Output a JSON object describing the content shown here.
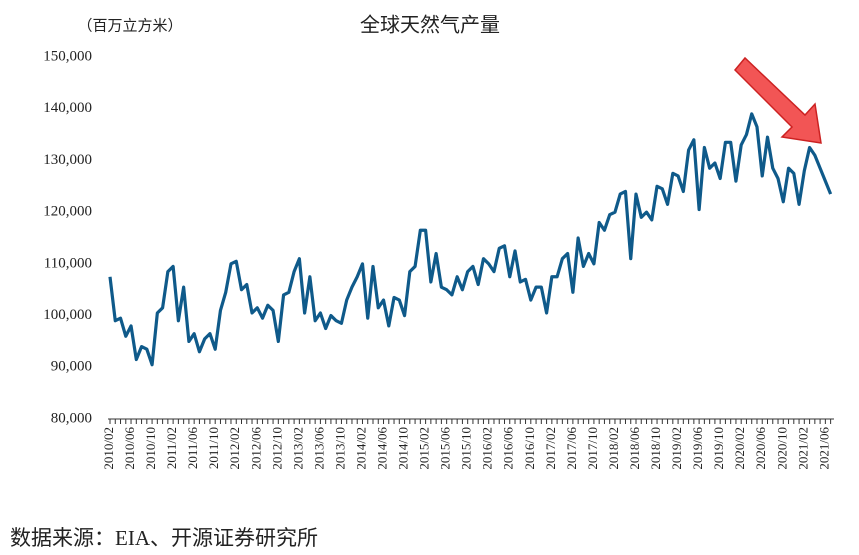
{
  "chart_data": {
    "type": "line",
    "title": "全球天然气产量",
    "unit_label": "（百万立方米）",
    "source": "数据来源：EIA、开源证券研究所",
    "categories": [
      "2010/02",
      null,
      null,
      null,
      "2010/06",
      null,
      null,
      null,
      "2010/10",
      null,
      null,
      null,
      "2011/02",
      null,
      null,
      null,
      "2011/06",
      null,
      null,
      null,
      "2011/10",
      null,
      null,
      null,
      "2012/02",
      null,
      null,
      null,
      "2012/06",
      null,
      null,
      null,
      "2012/10",
      null,
      null,
      null,
      "2013/02",
      null,
      null,
      null,
      "2013/06",
      null,
      null,
      null,
      "2013/10",
      null,
      null,
      null,
      "2014/02",
      null,
      null,
      null,
      "2014/06",
      null,
      null,
      null,
      "2014/10",
      null,
      null,
      null,
      "2015/02",
      null,
      null,
      null,
      "2015/06",
      null,
      null,
      null,
      "2015/10",
      null,
      null,
      null,
      "2016/02",
      null,
      null,
      null,
      "2016/06",
      null,
      null,
      null,
      "2016/10",
      null,
      null,
      null,
      "2017/02",
      null,
      null,
      null,
      "2017/06",
      null,
      null,
      null,
      "2017/10",
      null,
      null,
      null,
      "2018/02",
      null,
      null,
      null,
      "2018/06",
      null,
      null,
      null,
      "2018/10",
      null,
      null,
      null,
      "2019/02",
      null,
      null,
      null,
      "2019/06",
      null,
      null,
      null,
      "2019/10",
      null,
      null,
      null,
      "2020/02",
      null,
      null,
      null,
      "2020/06",
      null,
      null,
      null,
      "2020/10",
      null,
      null,
      null,
      "2021/02",
      null,
      null,
      null,
      "2021/06",
      null
    ],
    "values": [
      107500,
      99000,
      99500,
      96000,
      98000,
      91500,
      94000,
      93500,
      90500,
      100500,
      101500,
      108500,
      109500,
      99000,
      105500,
      95000,
      96500,
      93000,
      95500,
      96500,
      93500,
      101000,
      104500,
      110000,
      110500,
      105000,
      106000,
      100500,
      101500,
      99500,
      102000,
      101000,
      95000,
      104000,
      104500,
      108500,
      111000,
      100500,
      107500,
      99000,
      100500,
      97500,
      100000,
      99000,
      98500,
      103000,
      105500,
      107500,
      110000,
      99500,
      109500,
      101500,
      103000,
      98000,
      103500,
      103000,
      100000,
      108500,
      109500,
      116500,
      116500,
      106500,
      112000,
      105500,
      105000,
      104000,
      107500,
      105000,
      108500,
      109500,
      106000,
      111000,
      110000,
      108500,
      113000,
      113500,
      107500,
      112500,
      106500,
      107000,
      103000,
      105500,
      105500,
      100500,
      107500,
      107500,
      111000,
      112000,
      104500,
      115000,
      109500,
      112000,
      110000,
      118000,
      116500,
      119500,
      120000,
      123500,
      124000,
      111000,
      123500,
      119000,
      120000,
      118500,
      125000,
      124500,
      121500,
      127500,
      127000,
      124000,
      132000,
      134000,
      120500,
      132500,
      128500,
      129500,
      126500,
      133500,
      133500,
      126000,
      133000,
      135000,
      139000,
      136500,
      127000,
      134500,
      128500,
      126500,
      122000,
      128500,
      127500,
      121500,
      128000,
      132500,
      131000,
      128500,
      126000,
      123500
    ],
    "color": "#0f5a8a",
    "ylim": [
      80000,
      150000
    ],
    "yticks": [
      {
        "value": 80000,
        "label": "80,000"
      },
      {
        "value": 90000,
        "label": "90,000"
      },
      {
        "value": 100000,
        "label": "100,000"
      },
      {
        "value": 110000,
        "label": "110,000"
      },
      {
        "value": 120000,
        "label": "120,000"
      },
      {
        "value": 130000,
        "label": "130,000"
      },
      {
        "value": 140000,
        "label": "140,000"
      },
      {
        "value": 150000,
        "label": "150,000"
      }
    ]
  }
}
